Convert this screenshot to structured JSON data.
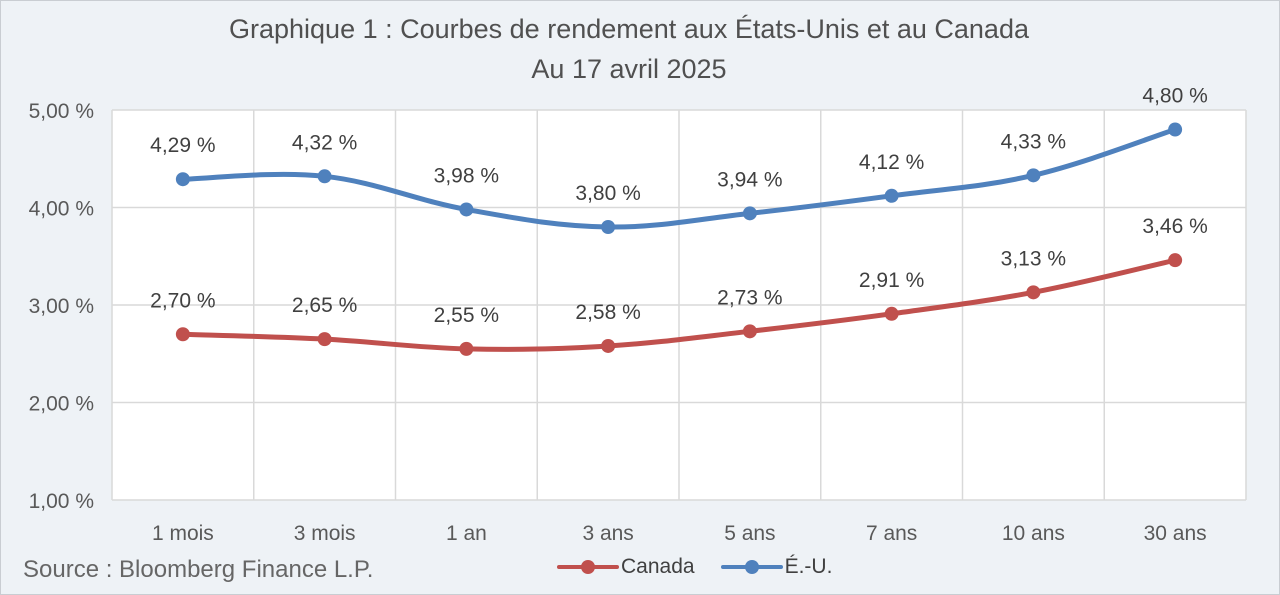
{
  "chart_data": {
    "type": "line",
    "title": "Graphique 1 : Courbes de rendement aux États-Unis et au Canada",
    "subtitle": "Au 17 avril 2025",
    "xlabel": "",
    "ylabel": "",
    "categories": [
      "1 mois",
      "3 mois",
      "1 an",
      "3 ans",
      "5 ans",
      "7 ans",
      "10 ans",
      "30 ans"
    ],
    "ylim": [
      1.0,
      5.0
    ],
    "yticks": [
      1.0,
      2.0,
      3.0,
      4.0,
      5.0
    ],
    "ytick_labels": [
      "1,00 %",
      "2,00 %",
      "3,00 %",
      "4,00 %",
      "5,00 %"
    ],
    "grid": true,
    "legend_position": "bottom",
    "series": [
      {
        "name": "Canada",
        "color": "#c0504d",
        "values": [
          2.7,
          2.65,
          2.55,
          2.58,
          2.73,
          2.91,
          3.13,
          3.46
        ],
        "labels": [
          "2,70 %",
          "2,65 %",
          "2,55 %",
          "2,58 %",
          "2,73 %",
          "2,91 %",
          "3,13 %",
          "3,46 %"
        ]
      },
      {
        "name": "É.-U.",
        "color": "#4f81bd",
        "values": [
          4.29,
          4.32,
          3.98,
          3.8,
          3.94,
          4.12,
          4.33,
          4.8
        ],
        "labels": [
          "4,29 %",
          "4,32 %",
          "3,98 %",
          "3,80 %",
          "3,94 %",
          "4,12 %",
          "4,33 %",
          "4,80 %"
        ]
      }
    ]
  },
  "source": "Source : Bloomberg Finance L.P.",
  "colors": {
    "background": "#eef2f6",
    "grid": "#d9d9d9"
  }
}
